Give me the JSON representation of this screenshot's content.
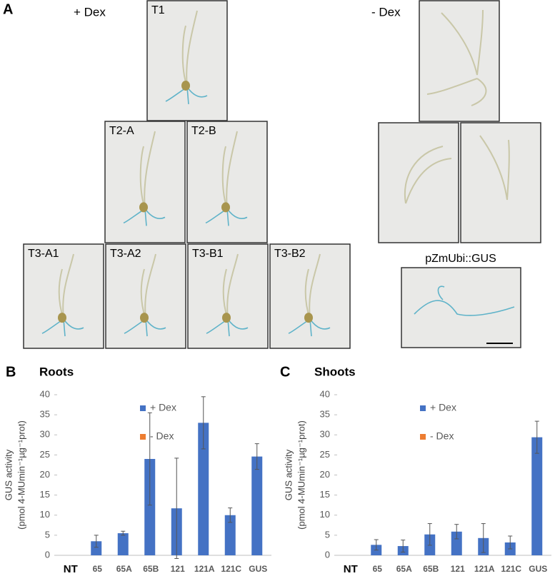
{
  "panel_a": {
    "label": "A",
    "plus_dex": "+ Dex",
    "minus_dex": "- Dex",
    "photos": [
      "T1",
      "T2-A",
      "T2-B",
      "T3-A1",
      "T3-A2",
      "T3-B1",
      "T3-B2"
    ],
    "control_label": "pZmUbi::GUS"
  },
  "chart_data": [
    {
      "type": "bar",
      "panel": "B",
      "title": "Roots",
      "ylabel": [
        "GUS activity",
        "(pmol 4-MUmin⁻¹µg⁻¹prot)"
      ],
      "categories": [
        "NT",
        "65",
        "65A",
        "65B",
        "121",
        "121A",
        "121C",
        "GUS"
      ],
      "series": [
        {
          "name": "+ Dex",
          "color": "#4472c4",
          "values": [
            0,
            3.5,
            5.5,
            24,
            11.7,
            33,
            10,
            24.6
          ],
          "errors": [
            0,
            1.5,
            0.5,
            11.5,
            12.5,
            6.5,
            1.8,
            3.2
          ]
        },
        {
          "name": "- Dex",
          "color": "#ed7d31",
          "values": [
            0,
            0,
            0,
            0,
            0,
            0,
            0,
            0
          ]
        }
      ],
      "ylim": [
        0,
        40
      ],
      "yticks": [
        0,
        5,
        10,
        15,
        20,
        25,
        30,
        35,
        40
      ]
    },
    {
      "type": "bar",
      "panel": "C",
      "title": "Shoots",
      "ylabel": [
        "GUS activity",
        "(pmol 4-MUmin⁻¹µg⁻¹prot)"
      ],
      "categories": [
        "NT",
        "65",
        "65A",
        "65B",
        "121",
        "121A",
        "121C",
        "GUS"
      ],
      "series": [
        {
          "name": "+ Dex",
          "color": "#4472c4",
          "values": [
            0,
            2.6,
            2.3,
            5.2,
            5.9,
            4.3,
            3.2,
            29.4
          ],
          "errors": [
            0,
            1.3,
            1.5,
            2.7,
            1.8,
            3.6,
            1.6,
            4
          ]
        },
        {
          "name": "- Dex",
          "color": "#ed7d31",
          "values": [
            0,
            0,
            0,
            0,
            0,
            0,
            0,
            0
          ]
        }
      ],
      "ylim": [
        0,
        40
      ],
      "yticks": [
        0,
        5,
        10,
        15,
        20,
        25,
        30,
        35,
        40
      ]
    }
  ]
}
